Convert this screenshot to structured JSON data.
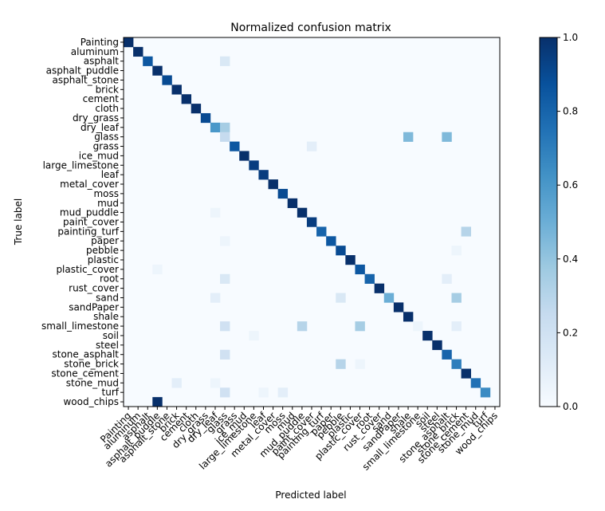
{
  "chart_data": {
    "type": "heatmap",
    "title": "Normalized confusion matrix",
    "xlabel": "Predicted label",
    "ylabel": "True label",
    "colormap": "Blues",
    "color_low": "#f7fbff",
    "color_high": "#08306b",
    "vlim": [
      0,
      1
    ],
    "colorbar_ticks": [
      "0.0",
      "0.2",
      "0.4",
      "0.6",
      "0.8",
      "1.0"
    ],
    "colorbar_tick_values": [
      0.0,
      0.2,
      0.4,
      0.6,
      0.8,
      1.0
    ],
    "classes": [
      "Painting",
      "aluminum",
      "asphalt",
      "asphalt_puddle",
      "asphalt_stone",
      "brick",
      "cement",
      "cloth",
      "dry_grass",
      "dry_leaf",
      "glass",
      "grass",
      "ice_mud",
      "large_limestone",
      "leaf",
      "metal_cover",
      "moss",
      "mud",
      "mud_puddle",
      "paint_cover",
      "painting_turf",
      "paper",
      "pebble",
      "plastic",
      "plastic_cover",
      "root",
      "rust_cover",
      "sand",
      "sandPaper",
      "shale",
      "small_limestone",
      "soil",
      "steel",
      "stone_asphalt",
      "stone_brick",
      "stone_cement",
      "stone_mud",
      "turf",
      "wood_chips"
    ],
    "diagonal": [
      1.0,
      1.0,
      0.85,
      1.0,
      0.9,
      1.0,
      1.0,
      1.0,
      0.9,
      0.6,
      0.25,
      0.85,
      1.0,
      0.95,
      0.95,
      1.0,
      0.9,
      1.0,
      1.0,
      0.95,
      0.8,
      0.85,
      0.9,
      1.0,
      0.85,
      0.8,
      1.0,
      0.5,
      1.0,
      1.0,
      0.05,
      1.0,
      1.0,
      0.8,
      0.7,
      1.0,
      0.75,
      0.65,
      0.0
    ],
    "off_diagonal": [
      [
        2,
        10,
        0.15
      ],
      [
        9,
        10,
        0.35
      ],
      [
        10,
        29,
        0.45
      ],
      [
        10,
        33,
        0.45
      ],
      [
        11,
        19,
        0.1
      ],
      [
        18,
        9,
        0.05
      ],
      [
        20,
        35,
        0.3
      ],
      [
        21,
        10,
        0.05
      ],
      [
        22,
        34,
        0.05
      ],
      [
        24,
        3,
        0.05
      ],
      [
        25,
        10,
        0.15
      ],
      [
        25,
        33,
        0.1
      ],
      [
        27,
        9,
        0.1
      ],
      [
        27,
        22,
        0.15
      ],
      [
        27,
        34,
        0.35
      ],
      [
        30,
        10,
        0.2
      ],
      [
        30,
        18,
        0.3
      ],
      [
        30,
        24,
        0.35
      ],
      [
        30,
        34,
        0.1
      ],
      [
        31,
        13,
        0.05
      ],
      [
        33,
        10,
        0.2
      ],
      [
        34,
        22,
        0.3
      ],
      [
        34,
        24,
        0.05
      ],
      [
        36,
        5,
        0.1
      ],
      [
        36,
        9,
        0.05
      ],
      [
        37,
        10,
        0.2
      ],
      [
        37,
        14,
        0.05
      ],
      [
        37,
        16,
        0.1
      ],
      [
        38,
        3,
        1.0
      ]
    ]
  }
}
